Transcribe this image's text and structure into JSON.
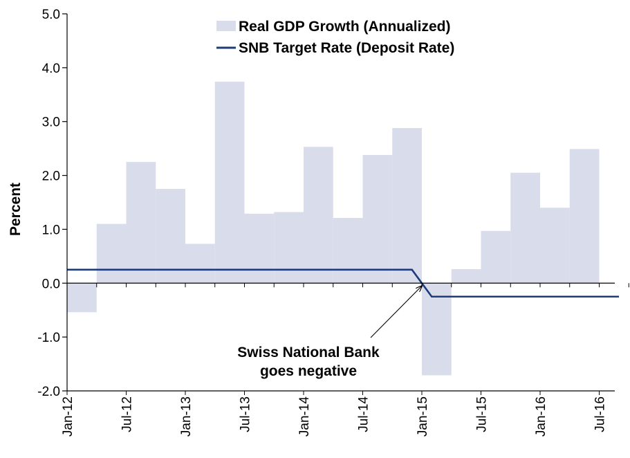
{
  "chart_data": {
    "type": "bar",
    "title": "",
    "xlabel": "",
    "ylabel": "Percent",
    "ylim": [
      -2.0,
      5.0
    ],
    "yticks": [
      "5.0",
      "4.0",
      "3.0",
      "2.0",
      "1.0",
      "0.0",
      "-1.0",
      "-2.0"
    ],
    "xticks": [
      "Jan-12",
      "Jul-12",
      "Jan-13",
      "Jul-13",
      "Jan-14",
      "Jul-14",
      "Jan-15",
      "Jul-15",
      "Jan-16",
      "Jul-16"
    ],
    "grid": false,
    "legend_position": "top-center",
    "colors": {
      "bar": "#d9dcea",
      "line": "#1f3a7a",
      "axis": "#000000"
    },
    "series": [
      {
        "name": "Real GDP Growth (Annualized)",
        "kind": "bar",
        "quarters": [
          "Q1 2012",
          "Q2 2012",
          "Q3 2012",
          "Q4 2012",
          "Q1 2013",
          "Q2 2013",
          "Q3 2013",
          "Q4 2013",
          "Q1 2014",
          "Q2 2014",
          "Q3 2014",
          "Q4 2014",
          "Q1 2015",
          "Q2 2015",
          "Q3 2015",
          "Q4 2015",
          "Q1 2016",
          "Q2 2016"
        ],
        "values": [
          -0.54,
          1.1,
          2.25,
          1.75,
          0.73,
          3.74,
          1.29,
          1.32,
          2.53,
          1.21,
          2.38,
          2.88,
          -1.71,
          0.26,
          0.97,
          2.05,
          1.4,
          2.49
        ]
      },
      {
        "name": "SNB Target Rate (Deposit Rate)",
        "kind": "line",
        "x": [
          "Jan-12",
          "Dec-14",
          "Feb-15",
          "Sep-16"
        ],
        "values": [
          0.25,
          0.25,
          -0.25,
          -0.25
        ]
      }
    ],
    "annotations": [
      {
        "lines": [
          "Swiss National Bank",
          "goes negative"
        ],
        "points_to": {
          "x": "Jan-15",
          "y": 0.0
        }
      }
    ]
  }
}
